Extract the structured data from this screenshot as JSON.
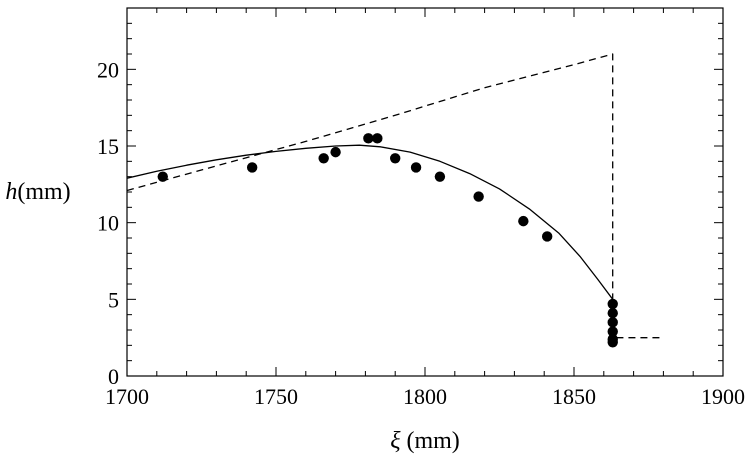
{
  "chart_data": {
    "type": "scatter",
    "title": "",
    "xlabel": {
      "symbol": "ξ",
      "unit": " (mm)"
    },
    "ylabel": {
      "symbol": "h",
      "unit": "(mm)"
    },
    "xlim": [
      1700,
      1900
    ],
    "ylim": [
      0,
      24
    ],
    "xticks": [
      1700,
      1750,
      1800,
      1850,
      1900
    ],
    "yticks": [
      0,
      5,
      10,
      15,
      20
    ],
    "grid": false,
    "series": [
      {
        "kind": "points",
        "color": "#000000",
        "points": [
          [
            1712,
            13.0
          ],
          [
            1742,
            13.6
          ],
          [
            1766,
            14.2
          ],
          [
            1770,
            14.6
          ],
          [
            1781,
            15.5
          ],
          [
            1784,
            15.5
          ],
          [
            1790,
            14.2
          ],
          [
            1797,
            13.6
          ],
          [
            1805,
            13.0
          ],
          [
            1818,
            11.7
          ],
          [
            1833,
            10.1
          ],
          [
            1841,
            9.1
          ],
          [
            1863,
            4.7
          ],
          [
            1863,
            4.1
          ],
          [
            1863,
            3.5
          ],
          [
            1863,
            2.9
          ],
          [
            1863,
            2.4
          ],
          [
            1863,
            2.2
          ]
        ]
      },
      {
        "kind": "solid-line",
        "color": "#000000",
        "points": [
          [
            1700,
            12.9
          ],
          [
            1710,
            13.35
          ],
          [
            1720,
            13.75
          ],
          [
            1730,
            14.1
          ],
          [
            1740,
            14.4
          ],
          [
            1750,
            14.65
          ],
          [
            1760,
            14.85
          ],
          [
            1770,
            15.0
          ],
          [
            1778,
            15.05
          ],
          [
            1785,
            14.95
          ],
          [
            1795,
            14.6
          ],
          [
            1805,
            14.0
          ],
          [
            1815,
            13.2
          ],
          [
            1825,
            12.2
          ],
          [
            1835,
            10.9
          ],
          [
            1845,
            9.3
          ],
          [
            1852,
            7.8
          ],
          [
            1858,
            6.3
          ],
          [
            1863,
            5.0
          ]
        ]
      },
      {
        "kind": "dashed-line",
        "color": "#000000",
        "points": [
          [
            1700,
            12.1
          ],
          [
            1730,
            13.7
          ],
          [
            1760,
            15.3
          ],
          [
            1790,
            17.0
          ],
          [
            1820,
            18.8
          ],
          [
            1850,
            20.3
          ],
          [
            1863,
            21.0
          ],
          [
            1863,
            2.5
          ],
          [
            1880,
            2.5
          ]
        ]
      }
    ]
  }
}
